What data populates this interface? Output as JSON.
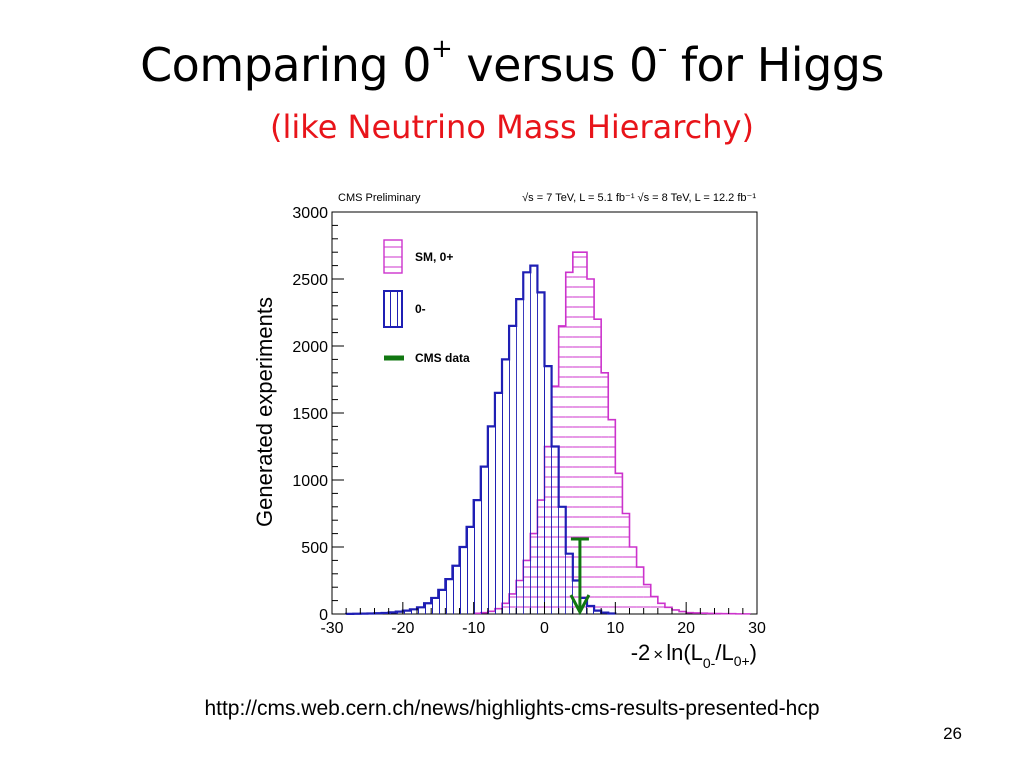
{
  "slide": {
    "title_main": "Comparing 0",
    "title_sup1": "+",
    "title_mid": " versus 0",
    "title_sup2": "-",
    "title_end": " for Higgs",
    "subtitle": "(like Neutrino Mass Hierarchy)",
    "source_url": "http://cms.web.cern.ch/news/highlights-cms-results-presented-hcp",
    "slide_number": "26"
  },
  "colors": {
    "sm_hist": "#cc33cc",
    "alt_hist": "#1f1fb4",
    "cms_data": "#117711",
    "axis": "#000000"
  },
  "chart_data": {
    "type": "bar",
    "header_left": "CMS Preliminary",
    "header_right": "√s = 7 TeV, L = 5.1 fb⁻¹ √s = 8 TeV, L = 12.2 fb⁻¹",
    "xlabel_pre": "-2",
    "xlabel_times": "×",
    "xlabel_ln": "ln(L",
    "xlabel_sub1": "0-",
    "xlabel_mid": "/L",
    "xlabel_sub2": "0+",
    "xlabel_end": ")",
    "ylabel": "Generated experiments",
    "xlim": [
      -30,
      30
    ],
    "ylim": [
      0,
      3000
    ],
    "x_ticks": [
      "-30",
      "-20",
      "-10",
      "0",
      "10",
      "20",
      "30"
    ],
    "y_ticks": [
      "0",
      "500",
      "1000",
      "1500",
      "2000",
      "2500",
      "3000"
    ],
    "legend": {
      "placement": "top-left",
      "entries": [
        "SM, 0+",
        "0-",
        "CMS data"
      ]
    },
    "bin_width": 1,
    "series": [
      {
        "name": "SM, 0+",
        "x": [
          -10,
          -9,
          -8,
          -7,
          -6,
          -5,
          -4,
          -3,
          -2,
          -1,
          0,
          1,
          2,
          3,
          4,
          5,
          6,
          7,
          8,
          9,
          10,
          11,
          12,
          13,
          14,
          15,
          16,
          17,
          18,
          19,
          20,
          21,
          22,
          23,
          24,
          25,
          26,
          27,
          28
        ],
        "values": [
          5,
          10,
          20,
          40,
          80,
          150,
          250,
          400,
          600,
          850,
          1250,
          1700,
          2150,
          2550,
          2700,
          2700,
          2500,
          2200,
          1800,
          1450,
          1050,
          750,
          500,
          350,
          220,
          130,
          80,
          50,
          30,
          18,
          10,
          8,
          6,
          4,
          3,
          2,
          2,
          1,
          1
        ]
      },
      {
        "name": "0-",
        "x": [
          -28,
          -27,
          -26,
          -25,
          -24,
          -23,
          -22,
          -21,
          -20,
          -19,
          -18,
          -17,
          -16,
          -15,
          -14,
          -13,
          -12,
          -11,
          -10,
          -9,
          -8,
          -7,
          -6,
          -5,
          -4,
          -3,
          -2,
          -1,
          0,
          1,
          2,
          3,
          4,
          5,
          6,
          7,
          8,
          9
        ],
        "values": [
          1,
          2,
          3,
          4,
          6,
          8,
          12,
          18,
          25,
          35,
          50,
          80,
          120,
          180,
          260,
          360,
          500,
          650,
          850,
          1100,
          1400,
          1650,
          1900,
          2150,
          2350,
          2550,
          2600,
          2400,
          1850,
          1250,
          800,
          450,
          250,
          120,
          60,
          25,
          10,
          4
        ]
      }
    ],
    "cms_data_x": 5,
    "cms_data_y_top": 560
  }
}
